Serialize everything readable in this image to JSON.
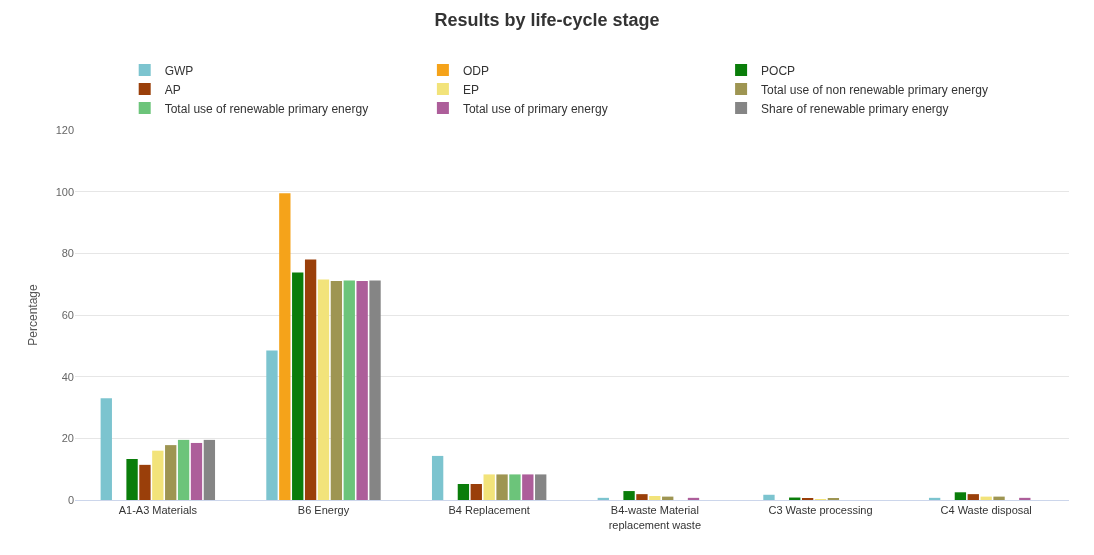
{
  "chart_data": {
    "type": "bar",
    "title": "Results by life-cycle stage",
    "ylabel": "Percentage",
    "categories": [
      "A1-A3 Materials",
      "B6 Energy",
      "B4 Replacement",
      "B4-waste Material replacement waste",
      "C3 Waste processing",
      "C4 Waste disposal"
    ],
    "series": [
      {
        "name": "GWP",
        "color": "#7cc4cf",
        "values": [
          33,
          48.5,
          14.3,
          0.7,
          1.7,
          0.7
        ]
      },
      {
        "name": "ODP",
        "color": "#f5a31a",
        "values": [
          0,
          99.5,
          0,
          0,
          0,
          0
        ]
      },
      {
        "name": "POCP",
        "color": "#0a7d0a",
        "values": [
          13.3,
          73.8,
          5.2,
          2.9,
          0.8,
          2.5
        ]
      },
      {
        "name": "AP",
        "color": "#9a3f0a",
        "values": [
          11.4,
          78,
          5.2,
          1.9,
          0.5,
          1.9
        ]
      },
      {
        "name": "EP",
        "color": "#f2e37a",
        "values": [
          16,
          71.5,
          8.3,
          1.3,
          0.3,
          1.1
        ]
      },
      {
        "name": "Total use of non renewable primary energy",
        "color": "#9e9552",
        "values": [
          17.8,
          71,
          8.3,
          1.1,
          0.4,
          1.1
        ]
      },
      {
        "name": "Total use of renewable primary energy",
        "color": "#6cc47a",
        "values": [
          19.5,
          71.2,
          8.3,
          0,
          0,
          0
        ]
      },
      {
        "name": "Total use of primary energy",
        "color": "#ad5e9a",
        "values": [
          18.5,
          71,
          8.3,
          0.7,
          0,
          0.7
        ]
      },
      {
        "name": "Share of renewable primary energy",
        "color": "#858585",
        "values": [
          19.5,
          71.2,
          8.3,
          0,
          0,
          0
        ]
      }
    ],
    "ylim": [
      0,
      120
    ],
    "yticks": [
      0,
      20,
      40,
      60,
      80,
      100,
      120
    ],
    "grid": "y",
    "legend": "top"
  }
}
